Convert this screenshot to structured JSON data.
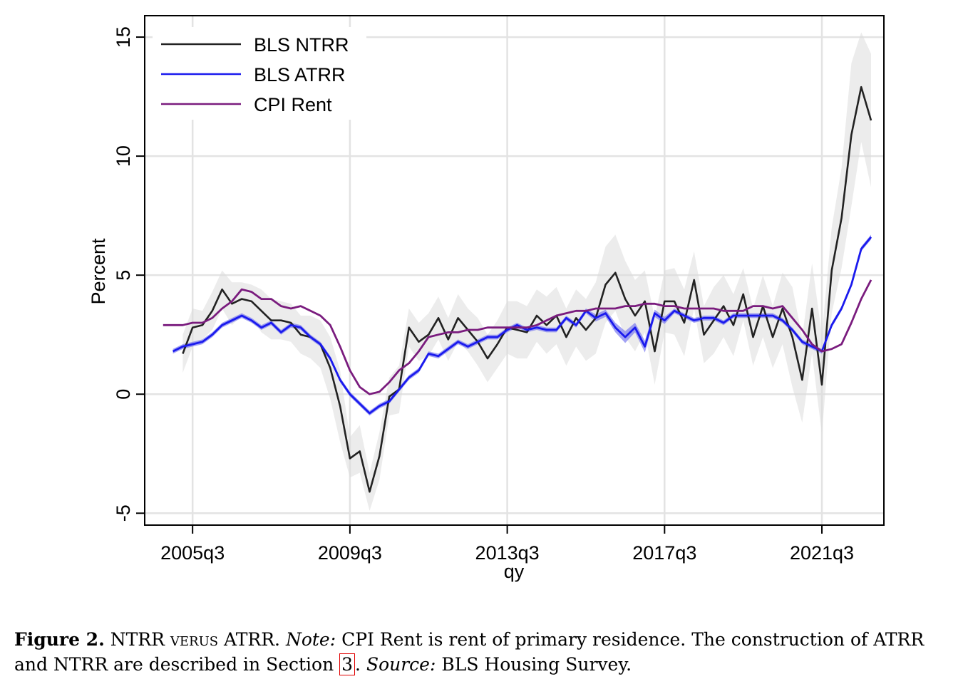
{
  "chart_data": {
    "type": "line",
    "xlabel": "qy",
    "ylabel": "Percent",
    "ylim": [
      -5.5,
      15.9
    ],
    "y_ticks": [
      "-5",
      "0",
      "5",
      "10",
      "15"
    ],
    "x_ticks": [
      "2005q3",
      "2009q3",
      "2013q3",
      "2017q3",
      "2021q3"
    ],
    "x_start": "2004q3",
    "x_end": "2022q4",
    "grid": true,
    "legend": "top-left",
    "series": [
      {
        "name": "BLS NTRR",
        "color": "#222222",
        "values": [
          1.7,
          2.8,
          2.9,
          3.5,
          4.4,
          3.8,
          4.0,
          3.9,
          3.5,
          3.1,
          3.1,
          3.0,
          2.5,
          2.4,
          2.1,
          1.1,
          -0.5,
          -2.7,
          -2.4,
          -4.1,
          -2.6,
          -0.1,
          0.2,
          2.8,
          2.2,
          2.5,
          3.2,
          2.3,
          3.2,
          2.7,
          2.2,
          1.5,
          2.1,
          2.8,
          2.7,
          2.6,
          3.3,
          2.9,
          3.3,
          2.4,
          3.2,
          2.7,
          3.2,
          4.6,
          5.1,
          4.0,
          3.3,
          3.9,
          1.8,
          3.9,
          3.9,
          3.0,
          4.8,
          2.5,
          3.1,
          3.7,
          2.9,
          4.2,
          2.4,
          3.7,
          2.4,
          3.6,
          2.4,
          0.6,
          3.6,
          0.4,
          5.2,
          7.4,
          10.9,
          12.9,
          11.5
        ],
        "band_upper": [
          2.5,
          3.6,
          3.5,
          4.3,
          5.2,
          4.7,
          4.7,
          4.6,
          4.4,
          4.0,
          3.9,
          3.8,
          3.3,
          3.3,
          3.1,
          2.4,
          1.0,
          -1.8,
          -1.3,
          -3.3,
          -1.6,
          0.7,
          1.2,
          3.6,
          3.0,
          3.4,
          4.1,
          3.2,
          4.2,
          3.6,
          3.2,
          2.5,
          3.1,
          3.9,
          3.9,
          3.7,
          4.4,
          4.1,
          4.5,
          3.6,
          4.4,
          4.0,
          4.7,
          6.2,
          6.7,
          5.6,
          4.8,
          5.2,
          3.2,
          5.2,
          5.3,
          4.4,
          6.0,
          3.7,
          4.5,
          5.0,
          4.2,
          5.3,
          3.6,
          5.0,
          3.7,
          5.1,
          4.5,
          2.4,
          5.5,
          2.5,
          7.0,
          9.5,
          13.9,
          15.2,
          14.3
        ],
        "band_lower": [
          0.9,
          2.0,
          2.3,
          2.7,
          3.6,
          2.9,
          3.3,
          3.2,
          2.6,
          2.3,
          2.3,
          2.2,
          1.7,
          1.5,
          1.1,
          -0.2,
          -2.0,
          -3.5,
          -3.3,
          -4.9,
          -3.6,
          -0.9,
          -0.8,
          2.0,
          1.4,
          1.6,
          2.3,
          1.4,
          2.2,
          1.8,
          1.2,
          0.5,
          1.1,
          1.7,
          1.5,
          1.5,
          2.2,
          1.7,
          2.1,
          1.2,
          2.0,
          1.4,
          1.7,
          3.0,
          3.5,
          2.4,
          1.8,
          2.6,
          0.4,
          2.6,
          2.5,
          1.6,
          3.6,
          1.3,
          1.7,
          2.4,
          1.6,
          3.1,
          1.2,
          2.4,
          1.1,
          2.1,
          0.3,
          -1.2,
          1.7,
          -1.7,
          3.4,
          5.3,
          7.9,
          10.6,
          8.7
        ]
      },
      {
        "name": "BLS ATRR",
        "color": "#1a1aee",
        "values": [
          1.8,
          2.0,
          2.1,
          2.2,
          2.5,
          2.9,
          3.1,
          3.3,
          3.1,
          2.8,
          3.0,
          2.6,
          2.9,
          2.8,
          2.4,
          2.1,
          1.5,
          0.6,
          0.0,
          -0.4,
          -0.8,
          -0.5,
          -0.3,
          0.2,
          0.7,
          1.0,
          1.7,
          1.6,
          1.9,
          2.2,
          2.0,
          2.2,
          2.4,
          2.4,
          2.7,
          2.9,
          2.7,
          2.8,
          2.7,
          2.7,
          3.2,
          2.9,
          3.5,
          3.2,
          3.4,
          2.8,
          2.4,
          2.8,
          2.0,
          3.4,
          3.1,
          3.5,
          3.3,
          3.1,
          3.2,
          3.2,
          3.0,
          3.3,
          3.3,
          3.3,
          3.3,
          3.3,
          3.1,
          2.7,
          2.2,
          2.0,
          1.8,
          2.9,
          3.6,
          4.6,
          6.1,
          6.6
        ],
        "band_upper": [
          1.9,
          2.1,
          2.2,
          2.3,
          2.6,
          3.0,
          3.2,
          3.4,
          3.2,
          2.9,
          3.1,
          2.7,
          3.0,
          2.9,
          2.5,
          2.2,
          1.6,
          0.7,
          0.1,
          -0.3,
          -0.7,
          -0.4,
          -0.2,
          0.3,
          0.8,
          1.1,
          1.8,
          1.7,
          2.0,
          2.3,
          2.1,
          2.3,
          2.5,
          2.5,
          2.8,
          3.0,
          2.8,
          2.9,
          2.8,
          2.8,
          3.3,
          3.0,
          3.6,
          3.35,
          3.55,
          3.0,
          2.65,
          3.0,
          2.25,
          3.55,
          3.25,
          3.6,
          3.4,
          3.2,
          3.3,
          3.3,
          3.1,
          3.4,
          3.4,
          3.4,
          3.4,
          3.4,
          3.2,
          2.8,
          2.3,
          2.1,
          1.9,
          3.0,
          3.7,
          4.7,
          6.2,
          6.7
        ],
        "band_lower": [
          1.7,
          1.9,
          2.0,
          2.1,
          2.4,
          2.8,
          3.0,
          3.2,
          3.0,
          2.7,
          2.9,
          2.5,
          2.8,
          2.7,
          2.3,
          2.0,
          1.4,
          0.5,
          -0.1,
          -0.5,
          -0.9,
          -0.6,
          -0.4,
          0.1,
          0.6,
          0.9,
          1.6,
          1.5,
          1.8,
          2.1,
          1.9,
          2.1,
          2.3,
          2.3,
          2.6,
          2.8,
          2.6,
          2.7,
          2.6,
          2.6,
          3.1,
          2.8,
          3.4,
          3.05,
          3.25,
          2.6,
          2.15,
          2.6,
          1.75,
          3.25,
          2.95,
          3.4,
          3.2,
          3.0,
          3.1,
          3.1,
          2.9,
          3.2,
          3.2,
          3.2,
          3.2,
          3.2,
          3.0,
          2.6,
          2.1,
          1.9,
          1.7,
          2.8,
          3.5,
          4.5,
          6.0,
          6.5
        ]
      },
      {
        "name": "CPI Rent",
        "color": "#7a1c7e",
        "values": [
          2.9,
          2.9,
          2.9,
          3.0,
          3.0,
          3.2,
          3.6,
          3.9,
          4.4,
          4.3,
          4.0,
          4.0,
          3.7,
          3.6,
          3.7,
          3.5,
          3.3,
          2.9,
          2.0,
          1.0,
          0.3,
          0.0,
          0.1,
          0.5,
          1.0,
          1.3,
          1.8,
          2.4,
          2.5,
          2.6,
          2.6,
          2.7,
          2.7,
          2.8,
          2.8,
          2.8,
          2.8,
          2.8,
          2.9,
          3.1,
          3.3,
          3.4,
          3.5,
          3.5,
          3.6,
          3.6,
          3.6,
          3.7,
          3.7,
          3.8,
          3.8,
          3.7,
          3.7,
          3.6,
          3.6,
          3.6,
          3.6,
          3.5,
          3.5,
          3.5,
          3.7,
          3.7,
          3.6,
          3.7,
          3.2,
          2.7,
          2.1,
          1.8,
          1.9,
          2.1,
          3.0,
          4.0,
          4.8
        ]
      }
    ]
  },
  "caption": {
    "label": "Figure 2.",
    "title": "NTRR verus ATRR.",
    "note_label": "Note:",
    "note_text_1": "CPI Rent is rent of primary residence. The construction of ATRR and NTRR are described in Section",
    "section_ref": "3",
    "note_text_2": ".",
    "source_label": "Source:",
    "source_text": "BLS Housing Survey."
  }
}
